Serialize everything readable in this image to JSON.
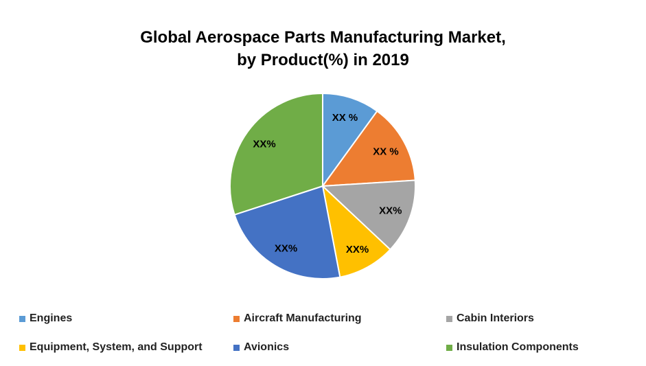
{
  "chart_data": {
    "type": "pie",
    "title": [
      "Global Aerospace Parts Manufacturing Market,",
      "by Product(%) in 2019"
    ],
    "slices": [
      {
        "name": "Engines",
        "value": 10,
        "label": "XX %",
        "color": "#5B9BD5"
      },
      {
        "name": "Aircraft Manufacturing",
        "value": 14,
        "label": "XX %",
        "color": "#ED7D31"
      },
      {
        "name": "Cabin Interiors",
        "value": 13,
        "label": "XX%",
        "color": "#A5A5A5"
      },
      {
        "name": "Equipment, System, and Support",
        "value": 10,
        "label": "XX%",
        "color": "#FFC000"
      },
      {
        "name": "Avionics",
        "value": 23,
        "label": "XX%",
        "color": "#4472C4"
      },
      {
        "name": "Insulation Components",
        "value": 30,
        "label": "XX%",
        "color": "#70AD47"
      }
    ],
    "legend_placement": "bottom"
  }
}
